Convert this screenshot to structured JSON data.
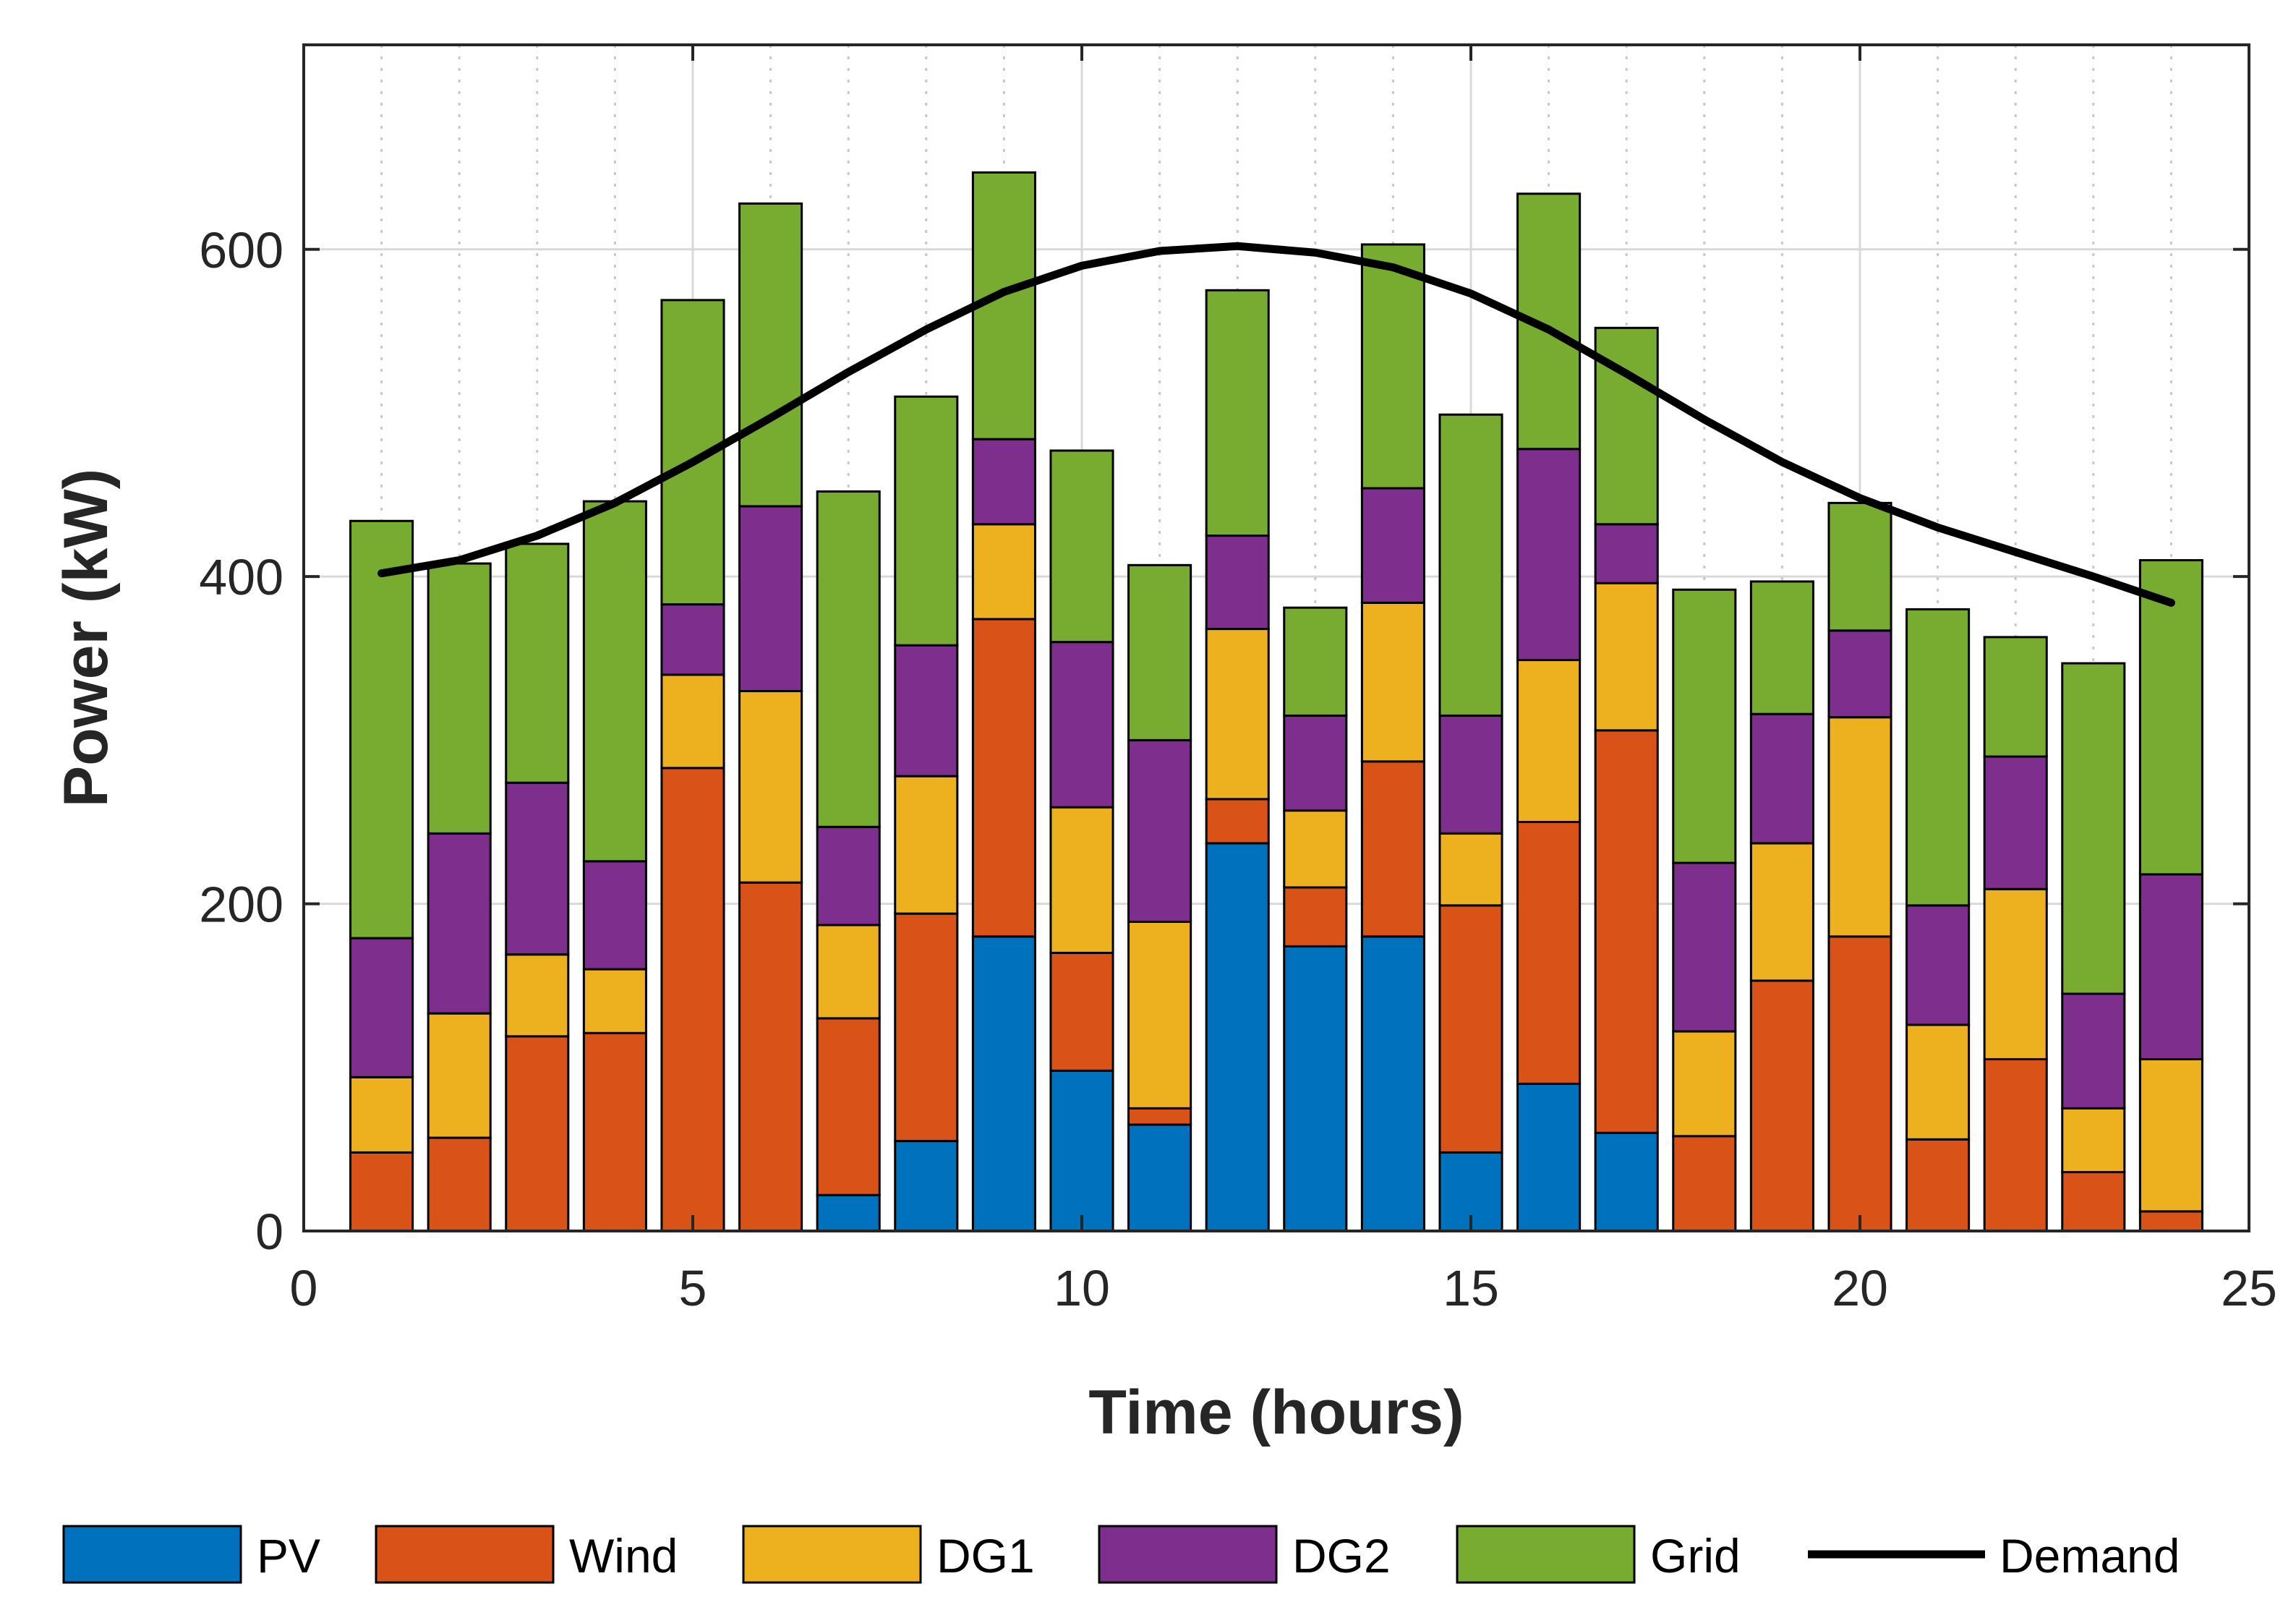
{
  "chart_data": {
    "type": "bar",
    "stacked": true,
    "title": "",
    "xlabel": "Time (hours)",
    "ylabel": "Power (kW)",
    "xlim": [
      0,
      25
    ],
    "ylim": [
      0,
      725
    ],
    "xticks": [
      0,
      5,
      10,
      15,
      20,
      25
    ],
    "yticks": [
      0,
      200,
      400,
      600
    ],
    "grid": true,
    "legend_position": "bottom",
    "x": [
      1,
      2,
      3,
      4,
      5,
      6,
      7,
      8,
      9,
      10,
      11,
      12,
      13,
      14,
      15,
      16,
      17,
      18,
      19,
      20,
      21,
      22,
      23,
      24
    ],
    "series": [
      {
        "name": "PV",
        "color": "#0072BD",
        "values": [
          0,
          0,
          0,
          0,
          0,
          0,
          22,
          55,
          180,
          98,
          65,
          237,
          174,
          180,
          48,
          90,
          60,
          0,
          0,
          0,
          0,
          0,
          0,
          0
        ]
      },
      {
        "name": "Wind",
        "color": "#D95319",
        "values": [
          48,
          57,
          119,
          121,
          283,
          213,
          108,
          139,
          194,
          72,
          10,
          27,
          36,
          107,
          151,
          160,
          246,
          58,
          153,
          180,
          56,
          105,
          36,
          12
        ]
      },
      {
        "name": "DG1",
        "color": "#EDB120",
        "values": [
          46,
          76,
          50,
          39,
          57,
          117,
          57,
          84,
          58,
          89,
          114,
          104,
          47,
          97,
          44,
          99,
          90,
          64,
          84,
          134,
          70,
          104,
          39,
          93
        ]
      },
      {
        "name": "DG2",
        "color": "#7E2F8E",
        "values": [
          85,
          110,
          105,
          66,
          43,
          113,
          60,
          80,
          52,
          101,
          111,
          57,
          58,
          70,
          72,
          129,
          36,
          103,
          79,
          53,
          73,
          81,
          70,
          113
        ]
      },
      {
        "name": "Grid",
        "color": "#77AC30",
        "values": [
          255,
          165,
          146,
          220,
          186,
          185,
          205,
          152,
          163,
          117,
          107,
          150,
          66,
          149,
          184,
          156,
          120,
          167,
          81,
          78,
          181,
          73,
          202,
          192
        ]
      }
    ],
    "line": {
      "name": "Demand",
      "color": "#000000",
      "values": [
        402,
        410,
        425,
        445,
        470,
        497,
        525,
        551,
        574,
        590,
        599,
        602,
        598,
        589,
        573,
        551,
        524,
        496,
        470,
        448,
        430,
        415,
        400,
        384
      ]
    }
  }
}
